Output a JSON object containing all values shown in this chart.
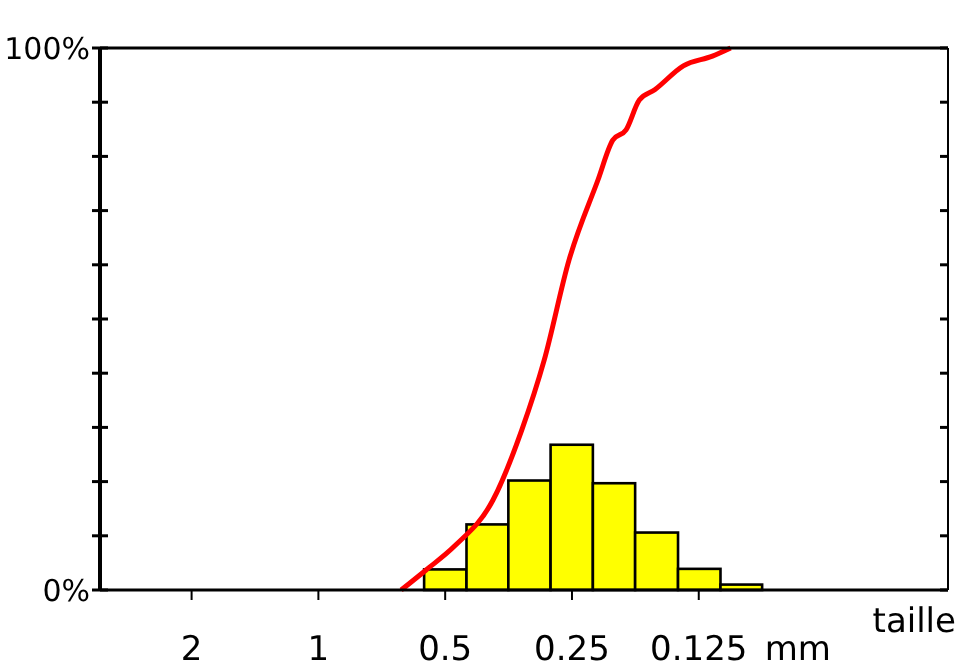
{
  "chart_data": {
    "type": "histogram",
    "xlabel": "taille",
    "log": "x",
    "xlim": [
      3.3,
      0.032
    ],
    "xticks": [
      2,
      1,
      0.5,
      0.25,
      0.125
    ],
    "ylim": [
      0,
      100
    ],
    "yticks": [
      {
        "value": 0,
        "label": "0%"
      },
      {
        "value": 10,
        "label": null
      },
      {
        "value": 20,
        "label": null
      },
      {
        "value": 30,
        "label": null
      },
      {
        "value": 40,
        "label": null
      },
      {
        "value": 50,
        "label": null
      },
      {
        "value": 60,
        "label": null
      },
      {
        "value": 70,
        "label": null
      },
      {
        "value": 80,
        "label": null
      },
      {
        "value": 90,
        "label": null
      },
      {
        "value": 100,
        "label": "100%"
      }
    ],
    "grid": false,
    "annotations": [
      "mm"
    ],
    "series": [
      {
        "color": "#ffff00",
        "bins": [
          0.561,
          0.445,
          0.354,
          0.281,
          0.223,
          0.177,
          0.14,
          0.111,
          0.0884
        ],
        "values": [
          3.8,
          12.1,
          20.2,
          26.8,
          19.7,
          10.6,
          3.9,
          1.0
        ]
      },
      {
        "type": "line",
        "color": "#ff0000",
        "marker": "none",
        "x": [
          0.636,
          0.555,
          0.475,
          0.385,
          0.329,
          0.291,
          0.254,
          0.217,
          0.2,
          0.186,
          0.173,
          0.159,
          0.136,
          0.116,
          0.105
        ],
        "values": [
          0,
          3.7,
          8.1,
          16.6,
          29.5,
          42.4,
          60.9,
          75.6,
          83,
          84.9,
          90.4,
          92.3,
          96.7,
          98.5,
          100
        ]
      }
    ]
  }
}
